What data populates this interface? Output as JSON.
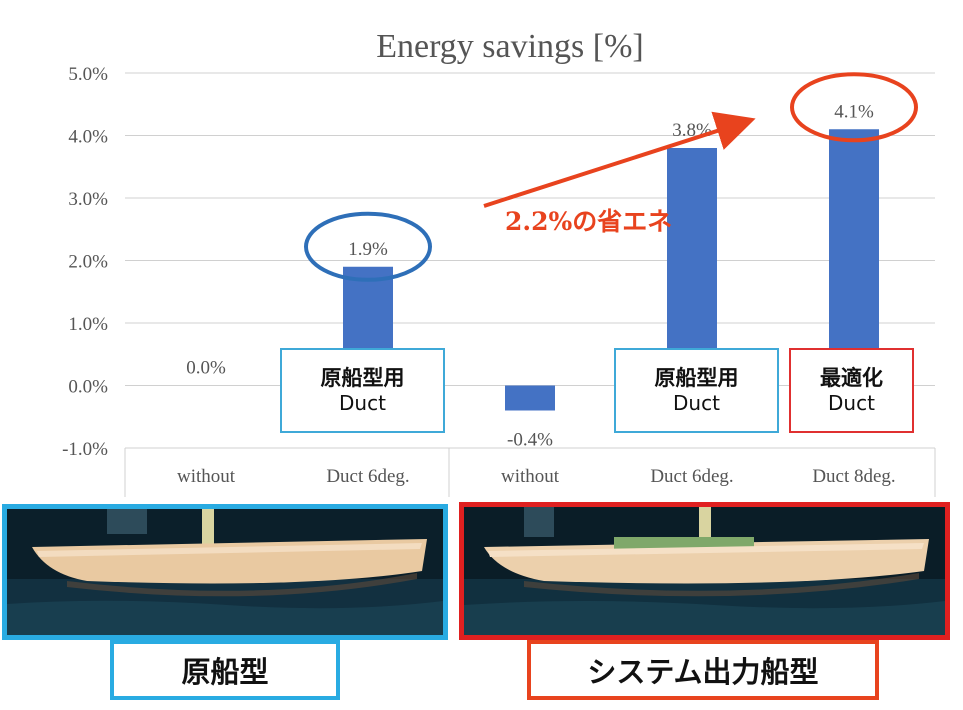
{
  "chart_data": {
    "type": "bar",
    "title": "Energy savings [%]",
    "categories": [
      "without",
      "Duct 6deg.",
      "without",
      "Duct 6deg.",
      "Duct 8deg."
    ],
    "values": [
      0.0,
      1.9,
      -0.4,
      3.8,
      4.1
    ],
    "data_labels": [
      "0.0%",
      "1.9%",
      "-0.4%",
      "3.8%",
      "4.1%"
    ],
    "y_ticks": [
      "5.0%",
      "4.0%",
      "3.0%",
      "2.0%",
      "1.0%",
      "0.0%",
      "-1.0%"
    ],
    "ylim": [
      -1.0,
      5.0
    ],
    "grid": true,
    "bar_color": "#4472c4",
    "groups": 2
  },
  "annotations": {
    "callout_text": "2.2%の省エネ",
    "callout_color": "#e8431e",
    "circle_1_9_color": "#2e6fb8",
    "circle_4_1_color": "#e8431e"
  },
  "duct_boxes": [
    {
      "jp": "原船型用",
      "en": "Duct",
      "border": "#3fa9d8"
    },
    {
      "jp": "原船型用",
      "en": "Duct",
      "border": "#3fa9d8"
    },
    {
      "jp": "最適化",
      "en": "Duct",
      "border": "#e03030"
    }
  ],
  "photos": [
    {
      "frame_color": "#29abe2",
      "label": "原船型",
      "label_border": "#29abe2"
    },
    {
      "frame_color": "#e02020",
      "label": "システム出力船型",
      "label_border": "#e8431e"
    }
  ]
}
